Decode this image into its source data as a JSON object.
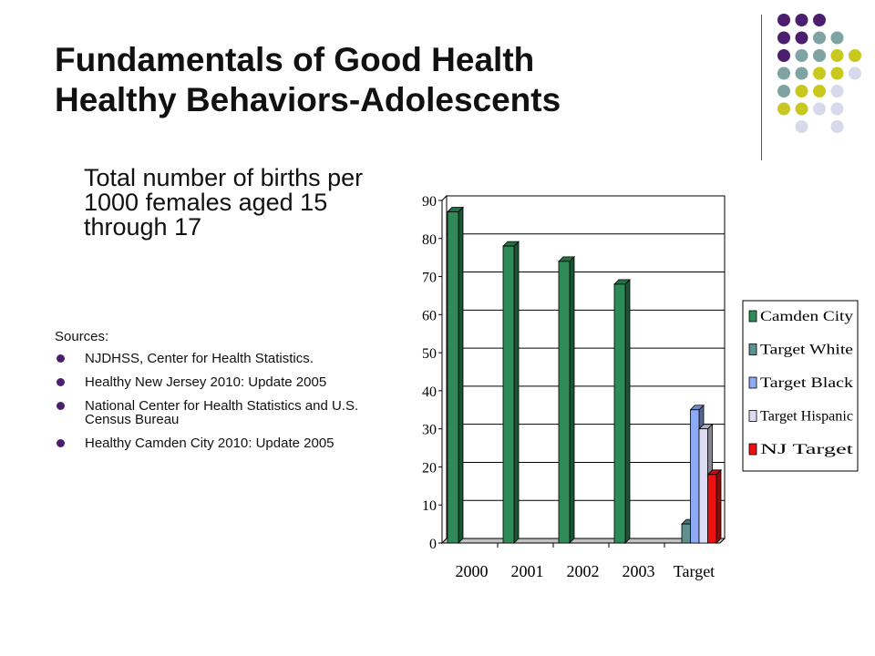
{
  "slide": {
    "title_line1": "Fundamentals of Good Health",
    "title_line2": "Healthy Behaviors-Adolescents",
    "lead": "Total number of births per 1000 females aged 15 through 17",
    "sources_label": "Sources:",
    "sources": [
      "NJDHSS, Center for Health Statistics.",
      "Healthy New Jersey 2010: Update 2005",
      "National Center for Health Statistics and U.S. Census Bureau",
      "Healthy Camden City 2010: Update 2005"
    ]
  },
  "theme": {
    "dot_colors": [
      "#4b1f6e",
      "#7fa3a3",
      "#c8c81e",
      "#d9d9ec"
    ],
    "bullet_color": "#4b1f6e"
  },
  "chart_data": {
    "type": "bar",
    "categories": [
      "2000",
      "2001",
      "2002",
      "2003",
      "Target"
    ],
    "series": [
      {
        "name": "Camden City",
        "color": "#2e8b57",
        "values": [
          87,
          78,
          74,
          68,
          null
        ]
      },
      {
        "name": "Target White",
        "color": "#5f8f8f",
        "values": [
          null,
          null,
          null,
          null,
          5
        ]
      },
      {
        "name": "Target Black",
        "color": "#8faaf5",
        "values": [
          null,
          null,
          null,
          null,
          35
        ]
      },
      {
        "name": "Target Hispanic",
        "color": "#dcdcf5",
        "values": [
          null,
          null,
          null,
          null,
          30
        ]
      },
      {
        "name": "NJ Target",
        "color": "#ee1111",
        "values": [
          null,
          null,
          null,
          null,
          18
        ]
      }
    ],
    "ylim": [
      0,
      90
    ],
    "yticks": [
      0,
      10,
      20,
      30,
      40,
      50,
      60,
      70,
      80,
      90
    ],
    "grid": true,
    "legend_position": "right"
  }
}
